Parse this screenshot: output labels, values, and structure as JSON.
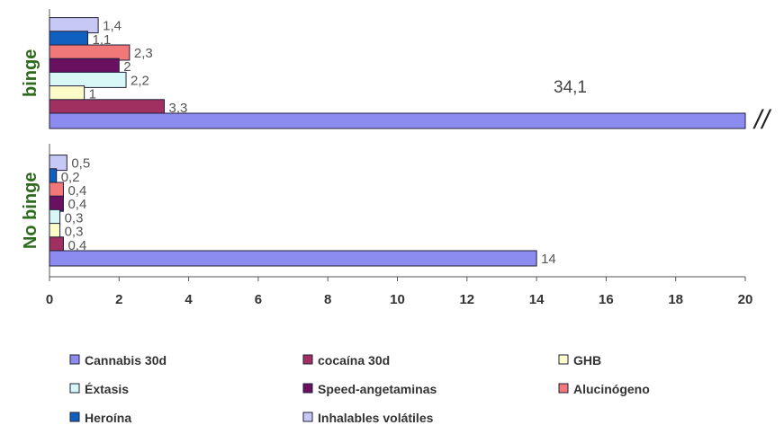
{
  "chart_data": {
    "type": "bar",
    "orientation": "horizontal",
    "xlim": [
      0,
      20
    ],
    "xticks": [
      "0",
      "2",
      "4",
      "6",
      "8",
      "10",
      "12",
      "14",
      "16",
      "18",
      "20"
    ],
    "axis_break_symbol": "//",
    "groups": [
      {
        "label": "binge",
        "series": [
          {
            "name": "Inhalables volátiles",
            "value": 1.4,
            "label": "1,4",
            "color": "#c8c8f5"
          },
          {
            "name": "Heroína",
            "value": 1.1,
            "label": "1,1",
            "color": "#1060c0"
          },
          {
            "name": "Alucinógeno",
            "value": 2.3,
            "label": "2,3",
            "color": "#f07878"
          },
          {
            "name": "Speed-angetaminas",
            "value": 2.0,
            "label": "2",
            "color": "#6a1060"
          },
          {
            "name": "Éxtasis",
            "value": 2.2,
            "label": "2,2",
            "color": "#d8f8f8"
          },
          {
            "name": "GHB",
            "value": 1.0,
            "label": "1",
            "color": "#fcfcc8"
          },
          {
            "name": "cocaína 30d",
            "value": 3.3,
            "label": "3,3",
            "color": "#a03060"
          },
          {
            "name": "Cannabis 30d",
            "value": 34.1,
            "label": "34,1",
            "color": "#8c8cf0"
          }
        ]
      },
      {
        "label": "No binge",
        "series": [
          {
            "name": "Inhalables volátiles",
            "value": 0.5,
            "label": "0,5",
            "color": "#c8c8f5"
          },
          {
            "name": "Heroína",
            "value": 0.2,
            "label": "0,2",
            "color": "#1060c0"
          },
          {
            "name": "Alucinógeno",
            "value": 0.4,
            "label": "0,4",
            "color": "#f07878"
          },
          {
            "name": "Speed-angetaminas",
            "value": 0.4,
            "label": "0,4",
            "color": "#6a1060"
          },
          {
            "name": "Éxtasis",
            "value": 0.3,
            "label": "0,3",
            "color": "#d8f8f8"
          },
          {
            "name": "GHB",
            "value": 0.3,
            "label": "0,3",
            "color": "#fcfcc8"
          },
          {
            "name": "cocaína 30d",
            "value": 0.4,
            "label": "0,4",
            "color": "#a03060"
          },
          {
            "name": "Cannabis 30d",
            "value": 14,
            "label": "14",
            "color": "#8c8cf0"
          }
        ]
      }
    ],
    "legend": [
      {
        "name": "Cannabis 30d",
        "color": "#8c8cf0"
      },
      {
        "name": "cocaína 30d",
        "color": "#a03060"
      },
      {
        "name": "GHB",
        "color": "#fcfcc8"
      },
      {
        "name": "Éxtasis",
        "color": "#d8f8f8"
      },
      {
        "name": "Speed-angetaminas",
        "color": "#6a1060"
      },
      {
        "name": "Alucinógeno",
        "color": "#f07878"
      },
      {
        "name": "Heroína",
        "color": "#1060c0"
      },
      {
        "name": "Inhalables volátiles",
        "color": "#c8c8f5"
      }
    ],
    "legend_placement": "bottom"
  }
}
